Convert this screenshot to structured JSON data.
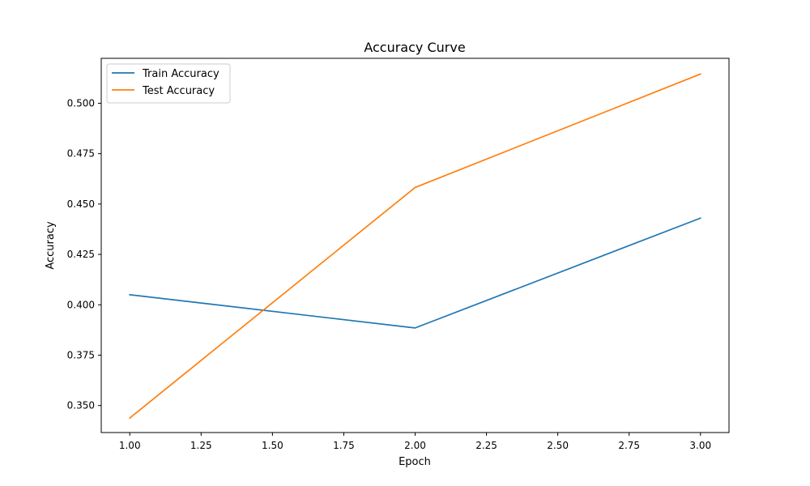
{
  "chart_data": {
    "type": "line",
    "title": "Accuracy Curve",
    "xlabel": "Epoch",
    "ylabel": "Accuracy",
    "x": [
      1,
      2,
      3
    ],
    "xlim": [
      0.9,
      3.1
    ],
    "ylim": [
      0.3366,
      0.5223
    ],
    "xticks": [
      1.0,
      1.25,
      1.5,
      1.75,
      2.0,
      2.25,
      2.5,
      2.75,
      3.0
    ],
    "xtick_labels": [
      "1.00",
      "1.25",
      "1.50",
      "1.75",
      "2.00",
      "2.25",
      "2.50",
      "2.75",
      "3.00"
    ],
    "yticks": [
      0.35,
      0.375,
      0.4,
      0.425,
      0.45,
      0.475,
      0.5
    ],
    "ytick_labels": [
      "0.350",
      "0.375",
      "0.400",
      "0.425",
      "0.450",
      "0.475",
      "0.500"
    ],
    "grid": false,
    "legend_position": "top-left",
    "series": [
      {
        "name": "Train Accuracy",
        "color": "#1f77b4",
        "values": [
          0.405,
          0.3885,
          0.443
        ]
      },
      {
        "name": "Test Accuracy",
        "color": "#ff7f0e",
        "values": [
          0.3438,
          0.4582,
          0.5145
        ]
      }
    ]
  }
}
